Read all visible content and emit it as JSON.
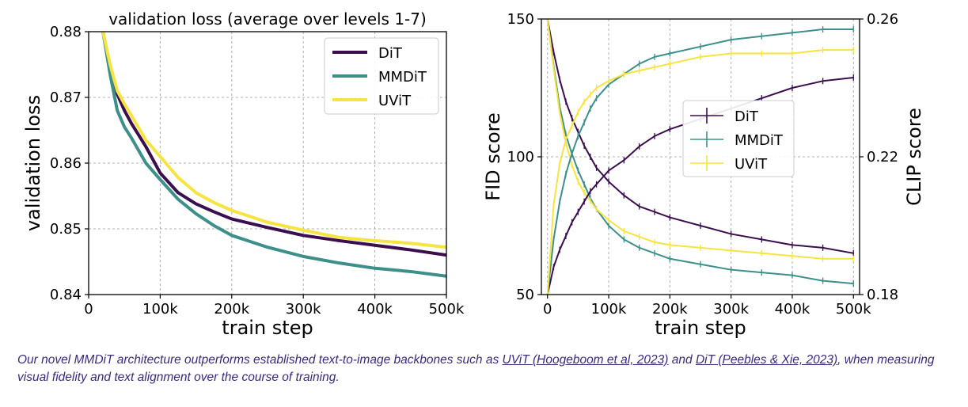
{
  "caption": {
    "part1": "Our novel MMDiT architecture outperforms established text-to-image backbones such as ",
    "link_uvit": "UViT (Hoogeboom et al, 2023)",
    "part2": " and ",
    "link_dit": "DiT (Peebles & Xie, 2023)",
    "part3": ", when measuring visual fidelity and text alignment over the course of training."
  },
  "colors": {
    "DiT": "#3b0f4f",
    "MMDiT": "#3d8f8a",
    "UViT": "#f5e442"
  },
  "chart_data": [
    {
      "type": "line",
      "title": "validation loss (average over levels 1-7)",
      "xlabel": "train step",
      "ylabel": "validation loss",
      "xlim": [
        0,
        500000
      ],
      "ylim": [
        0.84,
        0.88
      ],
      "xticks": [
        0,
        100000,
        200000,
        300000,
        400000,
        500000
      ],
      "xtick_labels": [
        "0",
        "100k",
        "200k",
        "300k",
        "400k",
        "500k"
      ],
      "yticks": [
        0.84,
        0.85,
        0.86,
        0.87,
        0.88
      ],
      "ytick_labels": [
        "0.84",
        "0.85",
        "0.86",
        "0.87",
        "0.88"
      ],
      "grid": true,
      "legend_position": "top-right",
      "x": [
        20000,
        30000,
        40000,
        50000,
        60000,
        80000,
        100000,
        125000,
        150000,
        175000,
        200000,
        250000,
        300000,
        350000,
        400000,
        450000,
        500000
      ],
      "series": [
        {
          "name": "DiT",
          "values": [
            0.88,
            0.8745,
            0.8705,
            0.868,
            0.866,
            0.8625,
            0.8585,
            0.8555,
            0.8538,
            0.8526,
            0.8515,
            0.8502,
            0.849,
            0.8482,
            0.8475,
            0.8468,
            0.846
          ]
        },
        {
          "name": "MMDiT",
          "values": [
            0.88,
            0.8735,
            0.868,
            0.8655,
            0.8638,
            0.86,
            0.8575,
            0.8545,
            0.8523,
            0.8505,
            0.849,
            0.8472,
            0.8458,
            0.8448,
            0.844,
            0.8435,
            0.8428
          ]
        },
        {
          "name": "UViT",
          "values": [
            0.88,
            0.875,
            0.871,
            0.869,
            0.8672,
            0.8635,
            0.861,
            0.8578,
            0.8555,
            0.854,
            0.8528,
            0.851,
            0.8498,
            0.8487,
            0.8482,
            0.8478,
            0.8472
          ]
        }
      ]
    },
    {
      "type": "line",
      "title": "",
      "xlabel": "train step",
      "ylabel": "FID score",
      "y2label": "CLIP score",
      "xlim": [
        -10000,
        510000
      ],
      "ylim": [
        50,
        150
      ],
      "y2lim": [
        0.18,
        0.26
      ],
      "xticks": [
        0,
        100000,
        200000,
        300000,
        400000,
        500000
      ],
      "xtick_labels": [
        "0",
        "100k",
        "200k",
        "300k",
        "400k",
        "500k"
      ],
      "yticks": [
        50,
        100,
        150
      ],
      "ytick_labels": [
        "50",
        "100",
        "150"
      ],
      "y2ticks": [
        0.18,
        0.22,
        0.26
      ],
      "y2tick_labels": [
        "0.18",
        "0.22",
        "0.26"
      ],
      "grid": true,
      "legend_position": "center",
      "error_bars": true,
      "x": [
        0,
        10000,
        20000,
        30000,
        40000,
        50000,
        60000,
        70000,
        80000,
        100000,
        125000,
        150000,
        175000,
        200000,
        250000,
        300000,
        350000,
        400000,
        450000,
        500000
      ],
      "fid_series": [
        {
          "name": "DiT",
          "values": [
            150,
            138,
            128,
            120,
            114,
            109,
            104,
            100,
            96,
            91,
            86,
            82,
            80,
            78,
            75,
            72,
            70,
            68,
            67,
            65
          ]
        },
        {
          "name": "MMDiT",
          "values": [
            150,
            133,
            118,
            108,
            101,
            95,
            90,
            85,
            81,
            75,
            70,
            67,
            65,
            63,
            61,
            59,
            58,
            57,
            55,
            54
          ]
        },
        {
          "name": "UViT",
          "values": [
            150,
            132,
            116,
            105,
            97,
            91,
            87,
            84,
            81,
            77,
            73,
            71,
            69,
            68,
            67,
            66,
            65,
            64,
            63,
            63
          ]
        }
      ],
      "clip_series": [
        {
          "name": "DiT",
          "values": [
            0.18,
            0.188,
            0.193,
            0.197,
            0.201,
            0.204,
            0.207,
            0.21,
            0.212,
            0.216,
            0.219,
            0.223,
            0.226,
            0.228,
            0.231,
            0.234,
            0.237,
            0.24,
            0.242,
            0.243
          ]
        },
        {
          "name": "MMDiT",
          "values": [
            0.18,
            0.196,
            0.207,
            0.215,
            0.221,
            0.226,
            0.23,
            0.234,
            0.237,
            0.241,
            0.244,
            0.247,
            0.249,
            0.25,
            0.252,
            0.254,
            0.255,
            0.256,
            0.257,
            0.257
          ]
        },
        {
          "name": "UViT",
          "values": [
            0.18,
            0.206,
            0.218,
            0.225,
            0.229,
            0.233,
            0.236,
            0.238,
            0.24,
            0.242,
            0.244,
            0.245,
            0.246,
            0.247,
            0.249,
            0.25,
            0.25,
            0.25,
            0.251,
            0.251
          ]
        }
      ]
    }
  ]
}
